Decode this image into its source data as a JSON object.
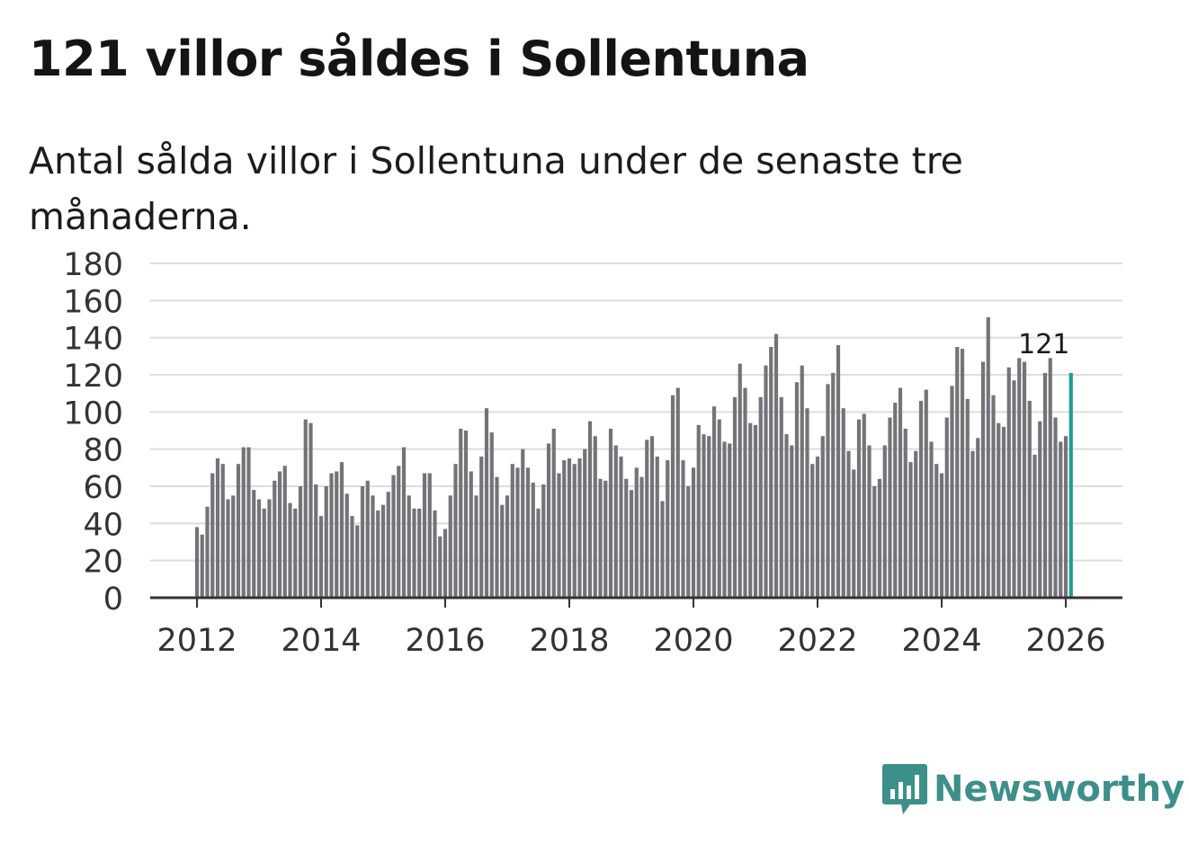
{
  "header": {
    "title": "121 villor såldes i Sollentuna",
    "subtitle": "Antal sålda villor i Sollentuna under de senaste tre månaderna."
  },
  "branding": {
    "name": "Newsworthy",
    "icon": "newsworthy-logo-icon",
    "color": "#3d8f8a"
  },
  "chart_data": {
    "type": "bar",
    "title": "121 villor såldes i Sollentuna",
    "xlabel": "",
    "ylabel": "",
    "ylim": [
      0,
      180
    ],
    "yticks": [
      0,
      20,
      40,
      60,
      80,
      100,
      120,
      140,
      160,
      180
    ],
    "xticks": [
      "2012",
      "2014",
      "2016",
      "2018",
      "2020",
      "2022",
      "2024",
      "2026"
    ],
    "grid": true,
    "start": "2012-01",
    "bar_color": "#747378",
    "highlight_color": "#1f9c96",
    "highlight_label": "121",
    "values": [
      38,
      34,
      49,
      67,
      75,
      72,
      53,
      55,
      72,
      81,
      81,
      58,
      53,
      48,
      53,
      63,
      68,
      71,
      51,
      48,
      60,
      96,
      94,
      61,
      44,
      60,
      67,
      68,
      73,
      56,
      44,
      39,
      60,
      63,
      55,
      47,
      50,
      57,
      66,
      71,
      81,
      55,
      48,
      48,
      67,
      67,
      47,
      33,
      37,
      55,
      72,
      91,
      90,
      68,
      55,
      76,
      102,
      89,
      65,
      50,
      55,
      72,
      70,
      80,
      70,
      62,
      48,
      61,
      83,
      91,
      67,
      74,
      75,
      72,
      75,
      80,
      95,
      87,
      64,
      63,
      91,
      82,
      76,
      64,
      58,
      70,
      65,
      85,
      87,
      76,
      52,
      74,
      109,
      113,
      74,
      60,
      70,
      93,
      88,
      87,
      103,
      96,
      84,
      83,
      108,
      126,
      113,
      94,
      93,
      108,
      125,
      135,
      142,
      108,
      88,
      82,
      116,
      125,
      102,
      72,
      76,
      87,
      115,
      121,
      136,
      102,
      79,
      69,
      96,
      99,
      82,
      60,
      64,
      82,
      97,
      105,
      113,
      91,
      73,
      79,
      106,
      112,
      84,
      72,
      67,
      97,
      114,
      135,
      134,
      107,
      79,
      86,
      127,
      151,
      109,
      94,
      92,
      124,
      117,
      129,
      127,
      106,
      77,
      95,
      121,
      129,
      97,
      84,
      87,
      121
    ]
  }
}
